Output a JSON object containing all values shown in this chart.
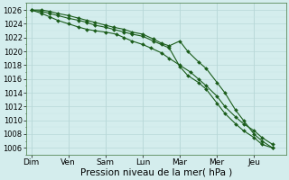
{
  "background_color": "#d4eded",
  "grid_color_major": "#b8d8d8",
  "grid_color_minor": "#c8e4e4",
  "line_color": "#1a5c1a",
  "xlabel": "Pression niveau de la mer( hPa )",
  "xlabel_fontsize": 7.5,
  "ytick_fontsize": 6,
  "xtick_fontsize": 6.5,
  "ylim": [
    1005.0,
    1027.0
  ],
  "yticks": [
    1006,
    1008,
    1010,
    1012,
    1014,
    1016,
    1018,
    1020,
    1022,
    1024,
    1026
  ],
  "day_labels": [
    "Dim",
    "Ven",
    "Sam",
    "Lun",
    "Mar",
    "Mer",
    "Jeu"
  ],
  "day_x": [
    0,
    14,
    28,
    42,
    56,
    70,
    84
  ],
  "xlim": [
    -2,
    96
  ],
  "line1_x": [
    0,
    4,
    7,
    10,
    14,
    18,
    21,
    24,
    28,
    32,
    35,
    38,
    42,
    45,
    49,
    52,
    56,
    60,
    63,
    66,
    70,
    73,
    77,
    80,
    84,
    87,
    91
  ],
  "line1_y": [
    1026,
    1025.5,
    1025.0,
    1024.5,
    1024.0,
    1023.5,
    1023.2,
    1023.0,
    1022.8,
    1022.5,
    1022.0,
    1021.5,
    1021.0,
    1020.5,
    1019.8,
    1019.0,
    1018.0,
    1017.0,
    1016.0,
    1015.0,
    1013.5,
    1012.0,
    1010.5,
    1009.5,
    1008.5,
    1007.5,
    1006.5
  ],
  "line2_x": [
    0,
    4,
    7,
    10,
    14,
    18,
    21,
    24,
    28,
    31,
    35,
    38,
    42,
    46,
    49,
    52,
    56,
    59,
    63,
    66,
    70,
    73,
    77,
    80,
    84,
    87,
    91
  ],
  "line2_y": [
    1026,
    1026.0,
    1025.8,
    1025.5,
    1025.2,
    1024.8,
    1024.5,
    1024.2,
    1023.8,
    1023.5,
    1023.2,
    1022.8,
    1022.5,
    1021.8,
    1021.2,
    1020.8,
    1021.5,
    1020.0,
    1018.5,
    1017.5,
    1015.5,
    1014.0,
    1011.5,
    1010.0,
    1008.0,
    1007.0,
    1006.0
  ],
  "line3_x": [
    0,
    4,
    7,
    10,
    14,
    18,
    21,
    24,
    28,
    31,
    35,
    38,
    42,
    46,
    49,
    52,
    56,
    59,
    63,
    66,
    70,
    73,
    77,
    80,
    84,
    87,
    91
  ],
  "line3_y": [
    1026,
    1025.8,
    1025.5,
    1025.2,
    1024.8,
    1024.5,
    1024.2,
    1023.8,
    1023.5,
    1023.2,
    1022.8,
    1022.5,
    1022.2,
    1021.5,
    1021.0,
    1020.5,
    1017.8,
    1016.5,
    1015.5,
    1014.5,
    1012.5,
    1011.0,
    1009.5,
    1008.5,
    1007.5,
    1006.5,
    1006.0
  ]
}
